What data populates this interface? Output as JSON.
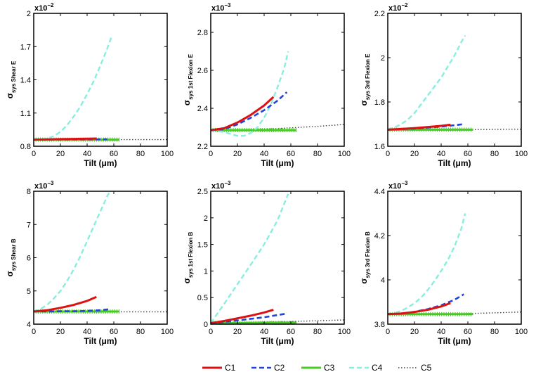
{
  "colors": {
    "C1": "#dd1111",
    "C2": "#2244dd",
    "C3": "#44cc22",
    "C4": "#88eedd",
    "C5": "#444444",
    "axis": "#000000"
  },
  "legend": [
    {
      "key": "C1",
      "label": "C1",
      "dash": "solid"
    },
    {
      "key": "C2",
      "label": "C2",
      "dash": "dashed"
    },
    {
      "key": "C3",
      "label": "C3",
      "dash": "solid"
    },
    {
      "key": "C4",
      "label": "C4",
      "dash": "dashed"
    },
    {
      "key": "C5",
      "label": "C5",
      "dash": "dotted"
    }
  ],
  "chart_data": [
    {
      "type": "line",
      "id": "shear-e",
      "ylabel_main": "σ",
      "ylabel_sub": "sys Shear E",
      "xlabel": "Tilt (μm)",
      "exponent_base": "x10",
      "exponent_power": "−2",
      "xlim": [
        0,
        100
      ],
      "ylim": [
        0.8,
        2.0
      ],
      "xticks": [
        0,
        20,
        40,
        60,
        80,
        100
      ],
      "xtick_labels": [
        "0",
        "20",
        "40",
        "60",
        "80",
        "100"
      ],
      "yticks": [
        0.8,
        1.1,
        1.4,
        1.7,
        2.0
      ],
      "ytick_labels": [
        "0.8",
        "1.1",
        "1.4",
        "1.7",
        "2"
      ],
      "series": [
        {
          "name": "C1",
          "x": [
            0,
            10,
            20,
            30,
            40,
            47
          ],
          "y": [
            0.86,
            0.862,
            0.864,
            0.866,
            0.868,
            0.87
          ]
        },
        {
          "name": "C2",
          "x": [
            0,
            10,
            20,
            30,
            40,
            50,
            55
          ],
          "y": [
            0.86,
            0.86,
            0.861,
            0.862,
            0.862,
            0.863,
            0.863
          ]
        },
        {
          "name": "C3",
          "x": [
            0,
            10,
            20,
            30,
            40,
            50,
            64
          ],
          "y": [
            0.86,
            0.86,
            0.86,
            0.86,
            0.86,
            0.86,
            0.86
          ]
        },
        {
          "name": "C4",
          "x": [
            0,
            5,
            10,
            15,
            20,
            25,
            30,
            35,
            40,
            45,
            50,
            55,
            58
          ],
          "y": [
            0.86,
            0.86,
            0.87,
            0.89,
            0.93,
            0.99,
            1.07,
            1.16,
            1.27,
            1.39,
            1.53,
            1.68,
            1.78
          ]
        },
        {
          "name": "C5",
          "x": [
            0,
            20,
            40,
            60,
            80,
            100
          ],
          "y": [
            0.86,
            0.86,
            0.86,
            0.86,
            0.86,
            0.86
          ]
        }
      ]
    },
    {
      "type": "line",
      "id": "flexion1-e",
      "ylabel_main": "σ",
      "ylabel_sub": "sys 1st Flexion E",
      "xlabel": "Tilt (μm)",
      "exponent_base": "x10",
      "exponent_power": "−3",
      "xlim": [
        0,
        100
      ],
      "ylim": [
        2.2,
        2.9
      ],
      "xticks": [
        0,
        20,
        40,
        60,
        80,
        100
      ],
      "xtick_labels": [
        "0",
        "20",
        "40",
        "60",
        "80",
        "100"
      ],
      "yticks": [
        2.2,
        2.4,
        2.6,
        2.8
      ],
      "ytick_labels": [
        "2.2",
        "2.4",
        "2.6",
        "2.8"
      ],
      "series": [
        {
          "name": "C1",
          "x": [
            0,
            10,
            20,
            30,
            40,
            47
          ],
          "y": [
            2.285,
            2.295,
            2.325,
            2.365,
            2.415,
            2.46
          ]
        },
        {
          "name": "C2",
          "x": [
            0,
            10,
            20,
            30,
            40,
            50,
            57
          ],
          "y": [
            2.285,
            2.29,
            2.315,
            2.35,
            2.39,
            2.44,
            2.485
          ]
        },
        {
          "name": "C3",
          "x": [
            0,
            20,
            40,
            64
          ],
          "y": [
            2.285,
            2.285,
            2.285,
            2.285
          ]
        },
        {
          "name": "C4",
          "x": [
            0,
            10,
            15,
            20,
            25,
            30,
            35,
            40,
            45,
            50,
            55,
            58
          ],
          "y": [
            2.285,
            2.275,
            2.265,
            2.255,
            2.255,
            2.27,
            2.3,
            2.35,
            2.42,
            2.51,
            2.61,
            2.7
          ]
        },
        {
          "name": "C5",
          "x": [
            0,
            20,
            40,
            60,
            80,
            100
          ],
          "y": [
            2.285,
            2.286,
            2.29,
            2.297,
            2.305,
            2.315
          ]
        }
      ]
    },
    {
      "type": "line",
      "id": "flexion3-e",
      "ylabel_main": "σ",
      "ylabel_sub": "sys 3rd Flexion E",
      "xlabel": "Tilt (μm)",
      "exponent_base": "x10",
      "exponent_power": "−2",
      "xlim": [
        0,
        100
      ],
      "ylim": [
        1.6,
        2.2
      ],
      "xticks": [
        0,
        20,
        40,
        60,
        80,
        100
      ],
      "xtick_labels": [
        "0",
        "20",
        "40",
        "60",
        "80",
        "100"
      ],
      "yticks": [
        1.6,
        1.8,
        2.0,
        2.2
      ],
      "ytick_labels": [
        "1.6",
        "1.8",
        "2",
        "2.2"
      ],
      "series": [
        {
          "name": "C1",
          "x": [
            0,
            10,
            20,
            30,
            40,
            47
          ],
          "y": [
            1.675,
            1.678,
            1.682,
            1.687,
            1.692,
            1.697
          ]
        },
        {
          "name": "C2",
          "x": [
            0,
            10,
            20,
            30,
            40,
            50,
            57
          ],
          "y": [
            1.675,
            1.677,
            1.68,
            1.684,
            1.689,
            1.695,
            1.7
          ]
        },
        {
          "name": "C3",
          "x": [
            0,
            20,
            40,
            64
          ],
          "y": [
            1.675,
            1.675,
            1.675,
            1.675
          ]
        },
        {
          "name": "C4",
          "x": [
            0,
            5,
            10,
            15,
            20,
            25,
            30,
            35,
            40,
            45,
            50,
            55,
            58
          ],
          "y": [
            1.675,
            1.685,
            1.7,
            1.72,
            1.75,
            1.79,
            1.83,
            1.87,
            1.91,
            1.96,
            2.01,
            2.07,
            2.1
          ]
        },
        {
          "name": "C5",
          "x": [
            0,
            20,
            40,
            60,
            80,
            100
          ],
          "y": [
            1.675,
            1.675,
            1.675,
            1.675,
            1.676,
            1.677
          ]
        }
      ]
    },
    {
      "type": "line",
      "id": "shear-b",
      "ylabel_main": "σ",
      "ylabel_sub": "sys Shear B",
      "xlabel": "Tilt (μm)",
      "exponent_base": "x10",
      "exponent_power": "−3",
      "xlim": [
        0,
        100
      ],
      "ylim": [
        4,
        8
      ],
      "xticks": [
        0,
        20,
        40,
        60,
        80,
        100
      ],
      "xtick_labels": [
        "0",
        "20",
        "40",
        "60",
        "80",
        "100"
      ],
      "yticks": [
        4,
        5,
        6,
        7,
        8
      ],
      "ytick_labels": [
        "4",
        "5",
        "6",
        "7",
        "8"
      ],
      "series": [
        {
          "name": "C1",
          "x": [
            0,
            10,
            20,
            30,
            40,
            47
          ],
          "y": [
            4.38,
            4.42,
            4.49,
            4.58,
            4.7,
            4.82
          ]
        },
        {
          "name": "C2",
          "x": [
            0,
            10,
            20,
            30,
            40,
            50,
            57
          ],
          "y": [
            4.38,
            4.38,
            4.39,
            4.39,
            4.4,
            4.42,
            4.45
          ]
        },
        {
          "name": "C3",
          "x": [
            0,
            20,
            40,
            64
          ],
          "y": [
            4.38,
            4.38,
            4.38,
            4.38
          ]
        },
        {
          "name": "C4",
          "x": [
            0,
            5,
            10,
            15,
            20,
            25,
            30,
            35,
            40,
            45,
            50,
            55,
            58
          ],
          "y": [
            4.38,
            4.45,
            4.58,
            4.77,
            5.0,
            5.3,
            5.65,
            6.05,
            6.5,
            6.95,
            7.4,
            7.85,
            8.05
          ]
        },
        {
          "name": "C5",
          "x": [
            0,
            20,
            40,
            60,
            80,
            100
          ],
          "y": [
            4.37,
            4.37,
            4.37,
            4.37,
            4.37,
            4.37
          ]
        }
      ]
    },
    {
      "type": "line",
      "id": "flexion1-b",
      "ylabel_main": "σ",
      "ylabel_sub": "sys 1st Flexion B",
      "xlabel": "Tilt (μm)",
      "exponent_base": "x10",
      "exponent_power": "−3",
      "xlim": [
        0,
        100
      ],
      "ylim": [
        0,
        2.5
      ],
      "xticks": [
        0,
        20,
        40,
        60,
        80,
        100
      ],
      "xtick_labels": [
        "0",
        "20",
        "40",
        "60",
        "80",
        "100"
      ],
      "yticks": [
        0,
        0.5,
        1.0,
        1.5,
        2.0,
        2.5
      ],
      "ytick_labels": [
        "0",
        "0.5",
        "1",
        "1.5",
        "2",
        "2.5"
      ],
      "series": [
        {
          "name": "C1",
          "x": [
            0,
            10,
            20,
            30,
            40,
            47
          ],
          "y": [
            0.02,
            0.06,
            0.11,
            0.16,
            0.22,
            0.27
          ]
        },
        {
          "name": "C2",
          "x": [
            0,
            10,
            20,
            30,
            40,
            50,
            57
          ],
          "y": [
            0.02,
            0.04,
            0.07,
            0.1,
            0.13,
            0.17,
            0.2
          ]
        },
        {
          "name": "C3",
          "x": [
            0,
            20,
            40,
            64
          ],
          "y": [
            0.02,
            0.02,
            0.025,
            0.03
          ]
        },
        {
          "name": "C4",
          "x": [
            0,
            10,
            20,
            30,
            40,
            50,
            58
          ],
          "y": [
            0.02,
            0.38,
            0.75,
            1.12,
            1.5,
            1.95,
            2.45
          ]
        },
        {
          "name": "C5",
          "x": [
            0,
            20,
            40,
            60,
            80,
            100
          ],
          "y": [
            0.02,
            0.03,
            0.04,
            0.05,
            0.065,
            0.08
          ]
        }
      ]
    },
    {
      "type": "line",
      "id": "flexion3-b",
      "ylabel_main": "σ",
      "ylabel_sub": "sys 3rd Flexion B",
      "xlabel": "Tilt (μm)",
      "exponent_base": "x10",
      "exponent_power": "−3",
      "xlim": [
        0,
        100
      ],
      "ylim": [
        3.8,
        4.4
      ],
      "xticks": [
        0,
        20,
        40,
        60,
        80,
        100
      ],
      "xtick_labels": [
        "0",
        "20",
        "40",
        "60",
        "80",
        "100"
      ],
      "yticks": [
        3.8,
        4.0,
        4.2,
        4.4
      ],
      "ytick_labels": [
        "3.8",
        "4",
        "4.2",
        "4.4"
      ],
      "series": [
        {
          "name": "C1",
          "x": [
            0,
            10,
            20,
            30,
            40,
            47
          ],
          "y": [
            3.845,
            3.848,
            3.855,
            3.865,
            3.88,
            3.895
          ]
        },
        {
          "name": "C2",
          "x": [
            0,
            10,
            20,
            30,
            40,
            50,
            57
          ],
          "y": [
            3.845,
            3.848,
            3.856,
            3.868,
            3.885,
            3.91,
            3.935
          ]
        },
        {
          "name": "C3",
          "x": [
            0,
            20,
            40,
            64
          ],
          "y": [
            3.845,
            3.845,
            3.845,
            3.845
          ]
        },
        {
          "name": "C4",
          "x": [
            0,
            5,
            10,
            15,
            20,
            25,
            30,
            35,
            40,
            45,
            50,
            55,
            58
          ],
          "y": [
            3.845,
            3.85,
            3.86,
            3.875,
            3.895,
            3.92,
            3.955,
            3.995,
            4.04,
            4.09,
            4.15,
            4.23,
            4.3
          ]
        },
        {
          "name": "C5",
          "x": [
            0,
            20,
            40,
            60,
            80,
            100
          ],
          "y": [
            3.845,
            3.845,
            3.846,
            3.848,
            3.851,
            3.855
          ]
        }
      ]
    }
  ]
}
